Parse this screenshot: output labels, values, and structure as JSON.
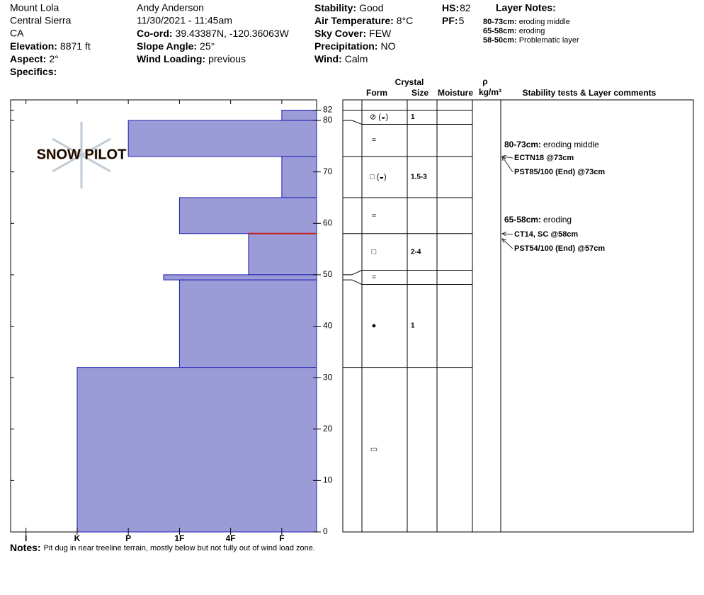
{
  "header": {
    "location": [
      "Mount Lola",
      "Central Sierra",
      "CA"
    ],
    "col1": [
      {
        "label": "Elevation:",
        "value": "8871 ft"
      },
      {
        "label": "Aspect:",
        "value": "2°"
      },
      {
        "label": "Specifics:"
      }
    ],
    "observer": "Andy Anderson",
    "datetime": "11/30/2021 - 11:45am",
    "col2": [
      {
        "label": "Co-ord:",
        "value": "39.43387N, -120.36063W"
      },
      {
        "label": "Slope Angle:",
        "value": "25°"
      },
      {
        "label": "Wind Loading:",
        "value": "previous"
      }
    ],
    "col3": [
      {
        "label": "Stability:",
        "value": "Good"
      },
      {
        "label": "Air Temperature:",
        "value": "8°C"
      },
      {
        "label": "Sky Cover:",
        "value": "FEW"
      },
      {
        "label": "Precipitation:",
        "value": "NO"
      },
      {
        "label": "Wind:",
        "value": "Calm"
      }
    ],
    "col4": [
      {
        "label": "HS:",
        "value": 82
      },
      {
        "label": "PF:",
        "value": 5
      }
    ],
    "layer_notes": {
      "title": "Layer Notes:",
      "items": [
        {
          "range": "80-73cm:",
          "text": "eroding middle"
        },
        {
          "range": "65-58cm:",
          "text": "eroding"
        },
        {
          "range": "58-50cm:",
          "text": "Problematic layer"
        }
      ]
    }
  },
  "chart_data": {
    "type": "snow-profile",
    "logo": "SNOW PILOT",
    "color": "#9b9bd8",
    "edge": "#1c1cb0",
    "concern_color": "#c02020",
    "ylim": [
      0,
      84
    ],
    "yticks": [
      0,
      10,
      20,
      30,
      40,
      50,
      60,
      70,
      80,
      82
    ],
    "xlim": [
      6.3,
      0.32
    ],
    "xticks": [
      {
        "value": 6,
        "label": "I"
      },
      {
        "value": 5,
        "label": "K"
      },
      {
        "value": 4,
        "label": "P"
      },
      {
        "value": 3,
        "label": "1F"
      },
      {
        "value": 2,
        "label": "4F"
      },
      {
        "value": 1,
        "label": "F"
      }
    ],
    "layers": [
      {
        "top": 82,
        "bottom": 80,
        "hardness": 1,
        "form": "⊘ (◒)",
        "size": 1
      },
      {
        "top": 80,
        "bottom": 73,
        "hardness": 4,
        "form": "="
      },
      {
        "top": 73,
        "bottom": 65,
        "hardness": 1,
        "form": "□ (◒)",
        "size": "1.5-3"
      },
      {
        "top": 65,
        "bottom": 58,
        "hardness": 3,
        "form": "="
      },
      {
        "top": 58,
        "bottom": 50,
        "hardness": 1.65,
        "form": "□",
        "size": "2-4"
      },
      {
        "top": 50,
        "bottom": 49,
        "hardness": 3.31,
        "form": "="
      },
      {
        "top": 49,
        "bottom": 32,
        "hardness": 3,
        "form": "●",
        "size": 1
      },
      {
        "top": 32,
        "bottom": 0,
        "hardness": 5,
        "form": "▭"
      }
    ],
    "concern_depth": 58,
    "columns": {
      "crystal": "Crystal",
      "form": "Form",
      "size": "Size",
      "moisture": "Moisture",
      "rho": "ρ",
      "density": "kg/m³",
      "comments": "Stability tests & Layer comments"
    },
    "layer_comments": [
      {
        "range": "80-73cm:",
        "text": "eroding middle"
      },
      {
        "range": "65-58cm:",
        "text": "eroding"
      }
    ],
    "tests": [
      {
        "label": "ECTN18 @73cm",
        "depth": 73
      },
      {
        "label": "PST85/100 (End) @73cm",
        "depth": 73
      },
      {
        "label": "CT14, SC @58cm",
        "depth": 58
      },
      {
        "label": "PST54/100 (End) @57cm",
        "depth": 57
      }
    ]
  },
  "notes": {
    "label": "Notes:",
    "text": "Pit dug in near treeline terrain, mostly below but not fully out of wind load zone."
  }
}
